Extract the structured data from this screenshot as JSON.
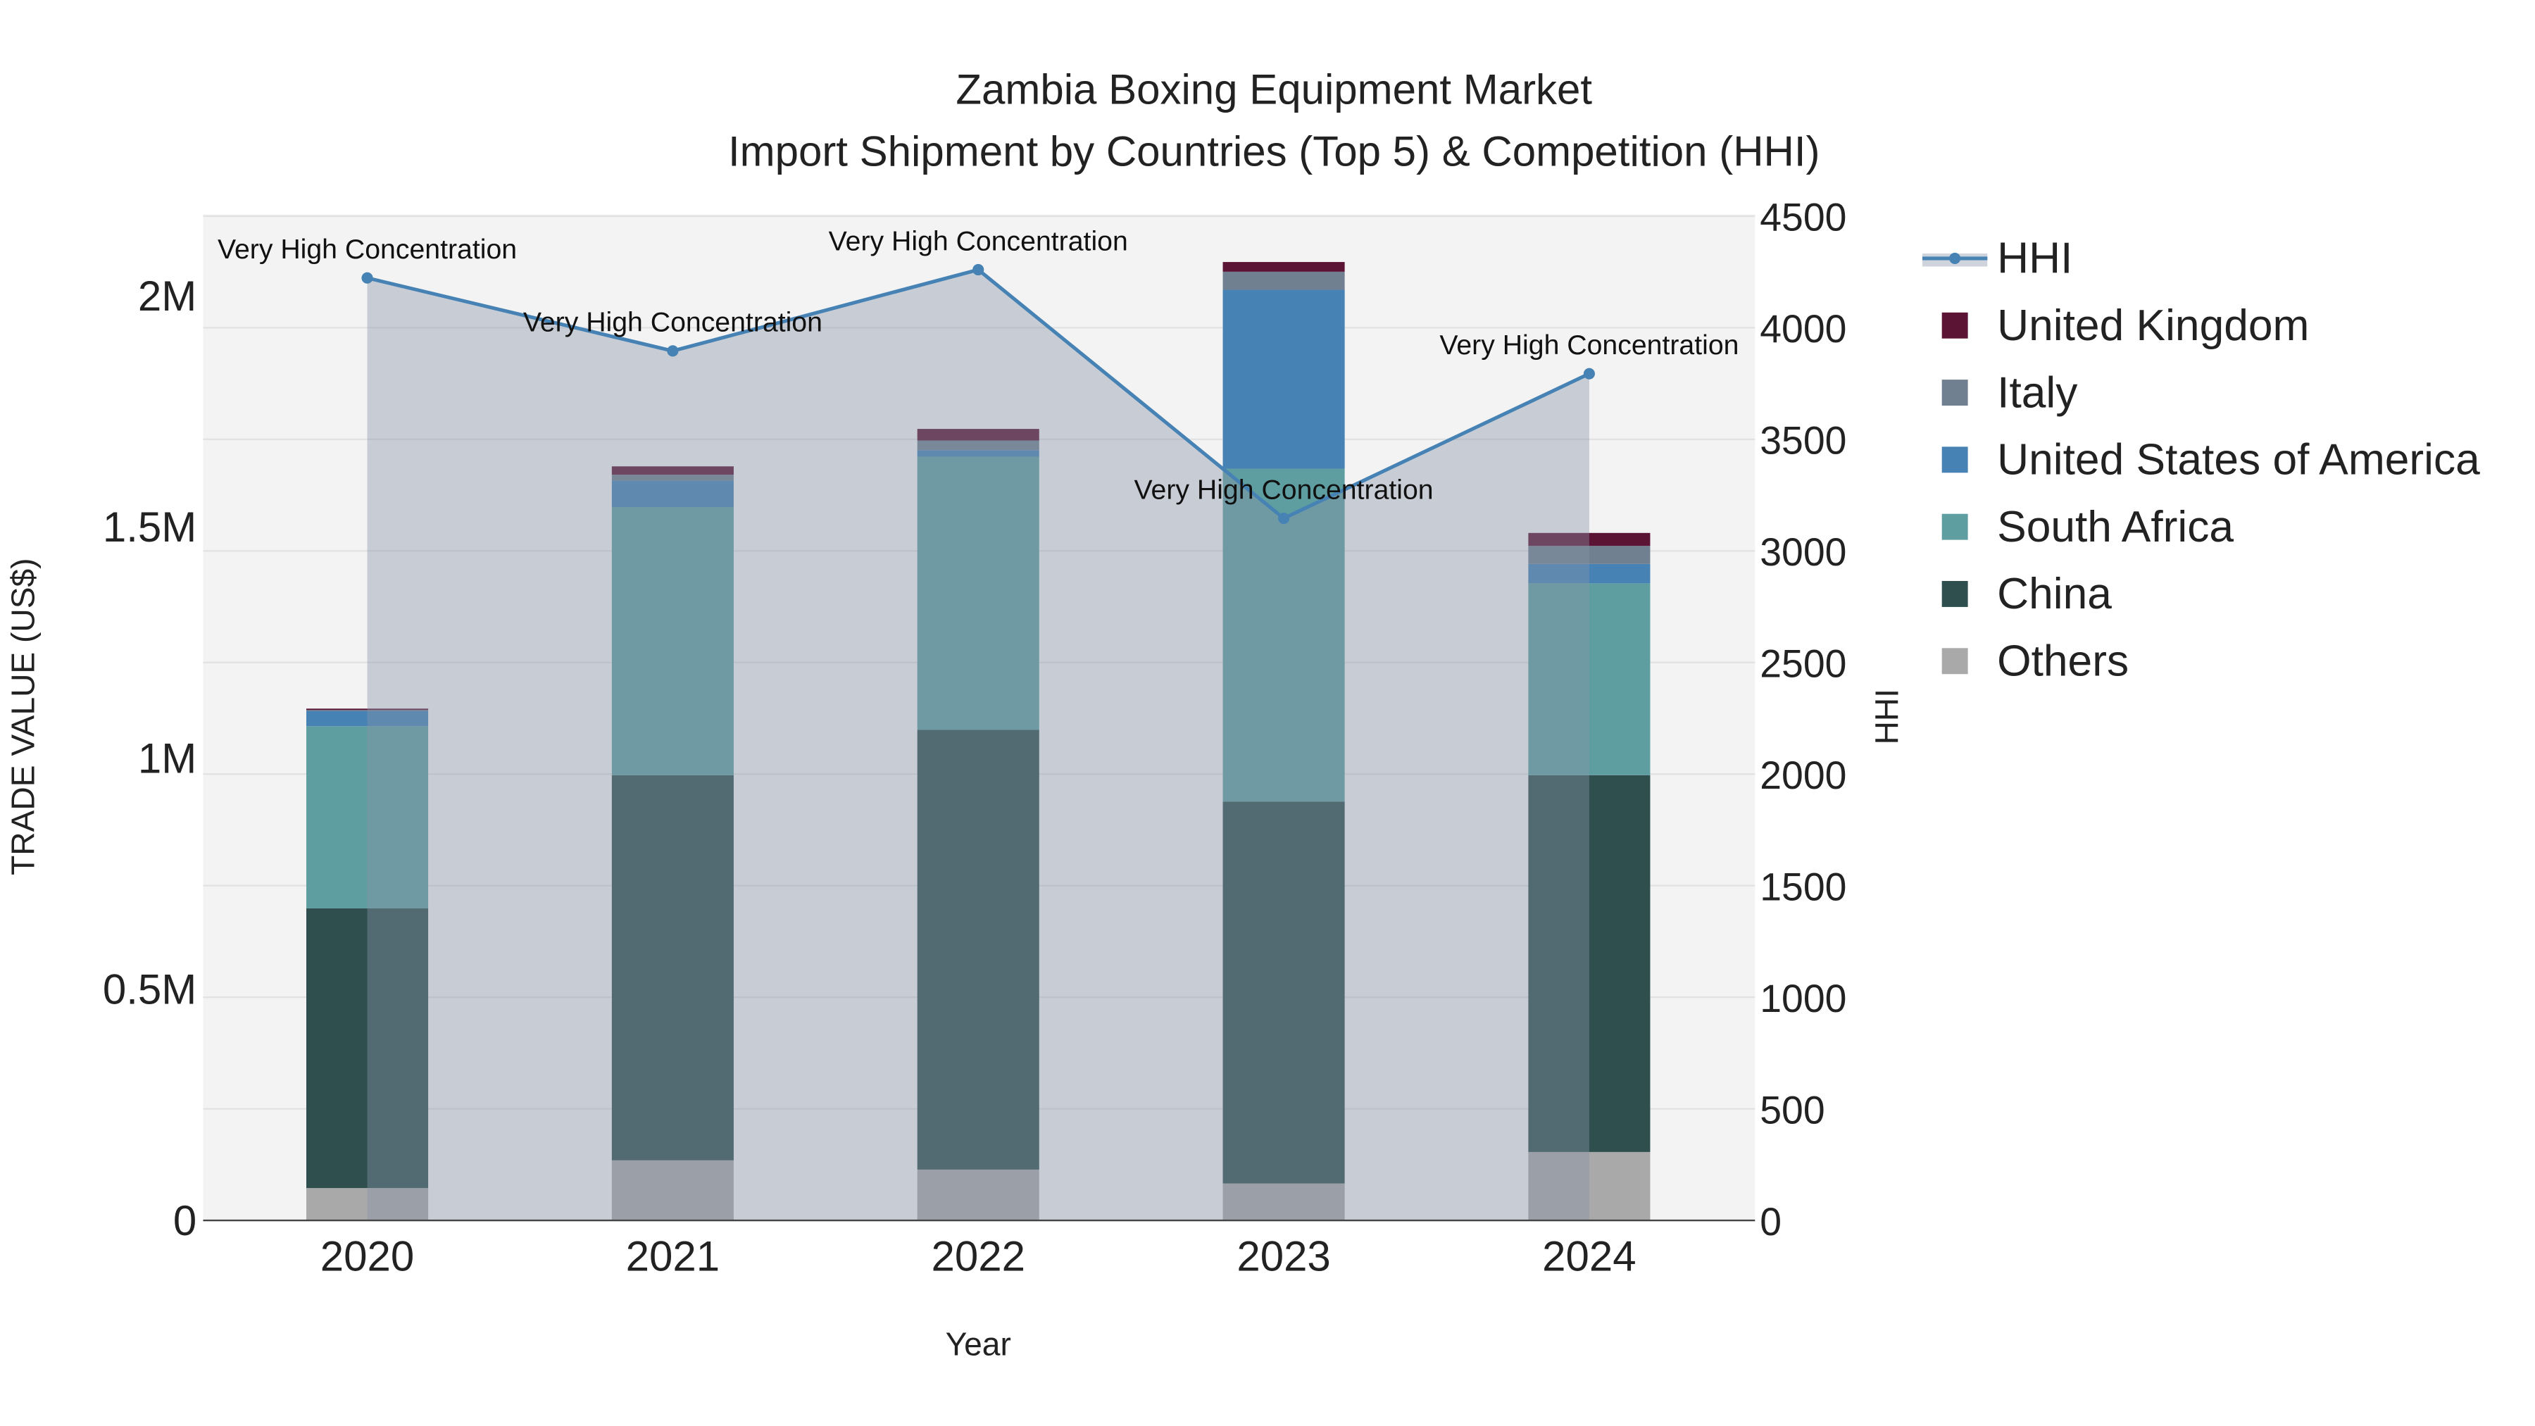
{
  "chart_data": {
    "type": "bar",
    "title": "Zambia Boxing Equipment Market",
    "subtitle": "Import Shipment by Countries (Top 5) & Competition (HHI)",
    "xlabel": "Year",
    "ylabel": "TRADE VALUE (US$)",
    "y2label": "HHI",
    "categories": [
      "2020",
      "2021",
      "2022",
      "2023",
      "2024"
    ],
    "ylim": [
      0,
      2180000
    ],
    "y2lim": [
      0,
      4500
    ],
    "yticks": [
      {
        "v": 0,
        "label": "0"
      },
      {
        "v": 500000,
        "label": "0.5M"
      },
      {
        "v": 1000000,
        "label": "1M"
      },
      {
        "v": 1500000,
        "label": "1.5M"
      },
      {
        "v": 2000000,
        "label": "2M"
      }
    ],
    "y2ticks": [
      0,
      500,
      1000,
      1500,
      2000,
      2500,
      3000,
      3500,
      4000,
      4500
    ],
    "series": [
      {
        "name": "Others",
        "color": "#a9a9a9",
        "values": [
          70000,
          130000,
          110000,
          80000,
          148000
        ]
      },
      {
        "name": "China",
        "color": "#2f4f4f",
        "values": [
          605000,
          833000,
          951000,
          826000,
          815000
        ]
      },
      {
        "name": "South Africa",
        "color": "#5f9ea0",
        "values": [
          394000,
          580000,
          591000,
          720000,
          415000
        ]
      },
      {
        "name": "United States of America",
        "color": "#4682b4",
        "values": [
          33000,
          57000,
          14000,
          387000,
          42000
        ]
      },
      {
        "name": "Italy",
        "color": "#708090",
        "values": [
          2000,
          13000,
          21000,
          39000,
          39000
        ]
      },
      {
        "name": "United Kingdom",
        "color": "#5c1435",
        "values": [
          3000,
          18000,
          25000,
          21000,
          28000
        ]
      }
    ],
    "line": {
      "name": "HHI",
      "color": "#4682b4",
      "values": [
        4223,
        3896,
        4260,
        3146,
        3794
      ],
      "annotations": [
        "Very High Concentration",
        "Very High Concentration",
        "Very High Concentration",
        "Very High Concentration",
        "Very High Concentration"
      ]
    },
    "legend_placement": "right",
    "legend_order": [
      "HHI",
      "United Kingdom",
      "Italy",
      "United States of America",
      "South Africa",
      "China",
      "Others"
    ],
    "grid": true
  }
}
